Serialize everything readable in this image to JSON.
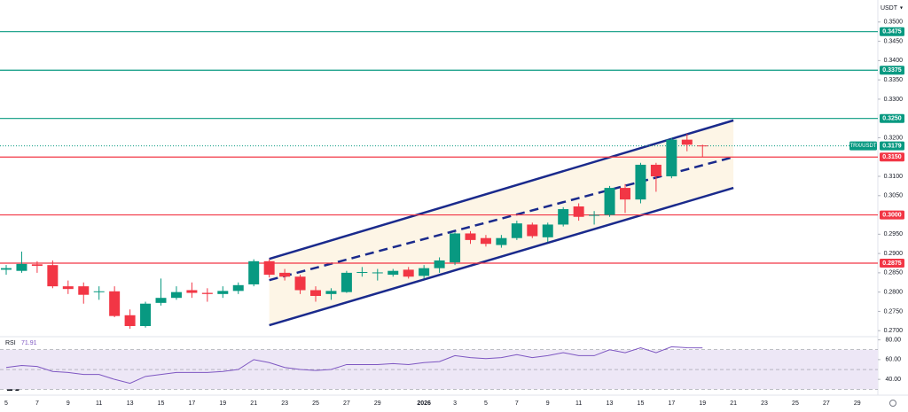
{
  "chart_data": {
    "type": "candlestick",
    "symbol": "TRX/USDT",
    "currency": "USDT",
    "categories": [
      "5",
      null,
      "7",
      null,
      "9",
      null,
      "11",
      null,
      "13",
      null,
      "15",
      null,
      "17",
      null,
      "19",
      null,
      "21",
      null,
      "23",
      null,
      "25",
      null,
      "27",
      null,
      "29",
      null,
      null,
      "2026",
      null,
      "3",
      null,
      "5",
      null,
      "7",
      null,
      "9",
      null,
      "11",
      null,
      "13",
      null,
      "15",
      null,
      "17",
      null,
      "19",
      null,
      "21",
      null,
      "23",
      null,
      "25",
      null,
      "27",
      null,
      "29"
    ],
    "open": [
      0.2858,
      0.2855,
      0.2872,
      0.287,
      0.2815,
      0.2815,
      0.28,
      0.2802,
      0.274,
      0.2712,
      0.2772,
      0.2785,
      0.2805,
      0.2798,
      0.2795,
      0.2803,
      0.282,
      0.288,
      0.285,
      0.284,
      0.2805,
      0.2795,
      0.28,
      0.285,
      0.285,
      0.2845,
      0.2858,
      0.2842,
      0.2862,
      0.2877,
      0.2952,
      0.294,
      0.2922,
      0.294,
      0.2975,
      0.2942,
      0.2975,
      0.3022,
      0.2998,
      0.3,
      0.307,
      0.304,
      0.313,
      0.31,
      0.3195,
      0.318,
      null,
      null,
      null,
      null,
      null,
      null,
      null,
      null,
      null,
      null
    ],
    "high": [
      0.287,
      0.2905,
      0.288,
      0.2882,
      0.283,
      0.2825,
      0.2815,
      0.2815,
      0.2755,
      0.2775,
      0.2835,
      0.2815,
      0.2825,
      0.281,
      0.2815,
      0.2825,
      0.2885,
      0.2885,
      0.286,
      0.2845,
      0.2815,
      0.281,
      0.2855,
      0.2865,
      0.286,
      0.286,
      0.2865,
      0.287,
      0.289,
      0.2955,
      0.2958,
      0.2948,
      0.2948,
      0.2985,
      0.298,
      0.298,
      0.302,
      0.303,
      0.301,
      0.3075,
      0.308,
      0.3135,
      0.3135,
      0.32,
      0.321,
      0.3182,
      null,
      null,
      null,
      null,
      null,
      null,
      null,
      null,
      null,
      null
    ],
    "low": [
      0.2845,
      0.285,
      0.285,
      0.281,
      0.2795,
      0.277,
      0.278,
      0.2735,
      0.2705,
      0.2708,
      0.2765,
      0.278,
      0.2785,
      0.2775,
      0.2785,
      0.2795,
      0.2815,
      0.2838,
      0.283,
      0.2795,
      0.2775,
      0.278,
      0.2798,
      0.284,
      0.283,
      0.284,
      0.2835,
      0.2835,
      0.285,
      0.287,
      0.2925,
      0.2918,
      0.2915,
      0.2935,
      0.294,
      0.293,
      0.297,
      0.2985,
      0.2975,
      0.2995,
      0.3005,
      0.303,
      0.306,
      0.3095,
      0.3165,
      0.315,
      null,
      null,
      null,
      null,
      null,
      null,
      null,
      null,
      null,
      null
    ],
    "close": [
      0.2862,
      0.2873,
      0.2868,
      0.2815,
      0.2808,
      0.2793,
      0.2802,
      0.2738,
      0.2712,
      0.277,
      0.2785,
      0.28,
      0.2798,
      0.2795,
      0.2803,
      0.2818,
      0.288,
      0.2845,
      0.284,
      0.2805,
      0.279,
      0.2803,
      0.285,
      0.2852,
      0.2851,
      0.2855,
      0.284,
      0.2862,
      0.2882,
      0.2952,
      0.2935,
      0.2925,
      0.294,
      0.2978,
      0.2945,
      0.2975,
      0.3015,
      0.2995,
      0.3,
      0.307,
      0.304,
      0.313,
      0.31,
      0.3195,
      0.3182,
      0.3179,
      null,
      null,
      null,
      null,
      null,
      null,
      null,
      null,
      null,
      null
    ],
    "up_color": "#089981",
    "down_color": "#f23645",
    "ylim": [
      0.2689,
      0.3557
    ],
    "yticks": [
      {
        "value": 0.35,
        "label": "0.3500"
      },
      {
        "value": 0.345,
        "label": "0.3450"
      },
      {
        "value": 0.34,
        "label": "0.3400"
      },
      {
        "value": 0.335,
        "label": "0.3350"
      },
      {
        "value": 0.33,
        "label": "0.3300"
      },
      {
        "value": 0.32,
        "label": "0.3200"
      },
      {
        "value": 0.31,
        "label": "0.3100"
      },
      {
        "value": 0.305,
        "label": "0.3050"
      },
      {
        "value": 0.295,
        "label": "0.2950"
      },
      {
        "value": 0.29,
        "label": "0.2900"
      },
      {
        "value": 0.285,
        "label": "0.2850"
      },
      {
        "value": 0.28,
        "label": "0.2800"
      },
      {
        "value": 0.275,
        "label": "0.2750"
      },
      {
        "value": 0.27,
        "label": "0.2700"
      }
    ],
    "levels": [
      {
        "value": 0.3475,
        "label": "0.3475",
        "color": "#089981"
      },
      {
        "value": 0.3375,
        "label": "0.3375",
        "color": "#089981"
      },
      {
        "value": 0.325,
        "label": "0.3250",
        "color": "#089981"
      },
      {
        "value": 0.315,
        "label": "0.3150",
        "color": "#f23645"
      },
      {
        "value": 0.3,
        "label": "0.3000",
        "color": "#f23645"
      },
      {
        "value": 0.2875,
        "label": "0.2875",
        "color": "#f23645"
      }
    ],
    "last_price": {
      "value": 0.3179,
      "label": "0.3179",
      "color": "#089981"
    },
    "channel": {
      "color": "#1a2a8c",
      "fill": "#fdf5e6",
      "upper": [
        [
          17,
          0.2886
        ],
        [
          47,
          0.3245
        ]
      ],
      "middle": [
        [
          17,
          0.2831
        ],
        [
          47,
          0.315
        ]
      ],
      "lower": [
        [
          17,
          0.2714
        ],
        [
          47,
          0.307
        ]
      ]
    },
    "rsi": {
      "type": "line",
      "name": "RSI",
      "color": "#7e57c2",
      "band_color": "#ede7f6",
      "values": [
        52,
        54,
        53,
        48,
        47,
        45,
        45,
        40,
        36,
        43,
        45,
        47,
        47,
        47,
        48,
        50,
        60,
        57,
        52,
        50,
        49,
        50,
        55,
        55,
        55,
        56,
        55,
        57,
        58,
        64,
        62,
        61,
        62,
        65,
        62,
        64,
        67,
        64,
        64,
        70,
        67,
        72,
        67,
        73,
        72,
        71.91
      ],
      "ylim": [
        24,
        85
      ],
      "yticks": [
        {
          "value": 80,
          "label": "80.00"
        },
        {
          "value": 60,
          "label": "60.00"
        },
        {
          "value": 40,
          "label": "40.00"
        }
      ],
      "band": [
        30,
        70
      ],
      "midline": 50
    }
  }
}
